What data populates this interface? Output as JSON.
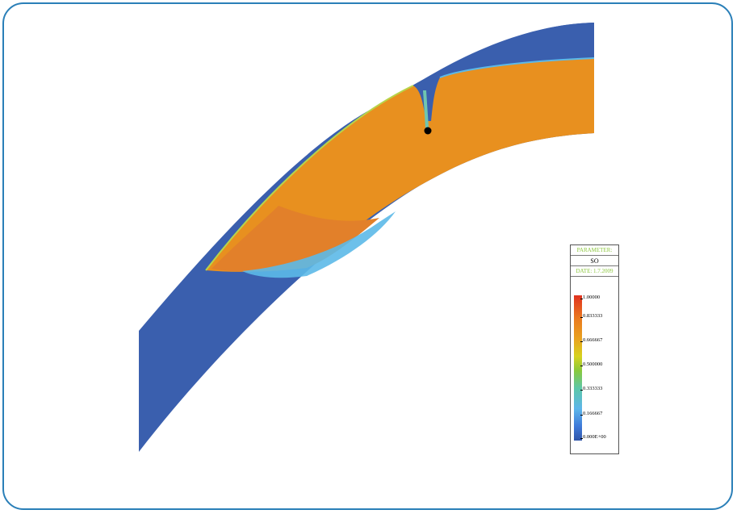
{
  "legend": {
    "header": "PARAMETER:",
    "name": "SO",
    "date": "DATE: 1.7.2009",
    "ticks": [
      "1.00000",
      "0.833333",
      "0.666667",
      "0.500000",
      "0.333333",
      "0.166667",
      "0.000E+00"
    ]
  },
  "colors": {
    "frame": "#2a7fb8",
    "low": "#3a5fae",
    "high": "#e8901f",
    "mid": "#e2802a",
    "transition": "#5cb9e8",
    "marker": "#000000"
  }
}
